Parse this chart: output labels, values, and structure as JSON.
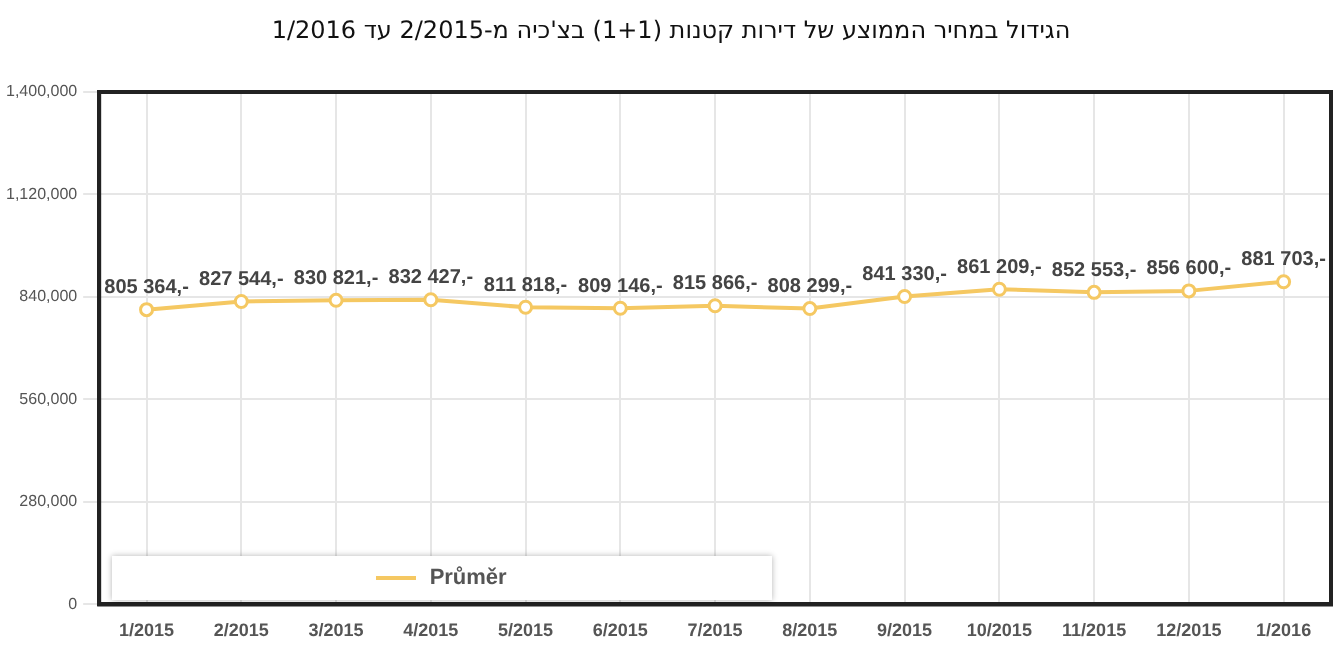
{
  "chart_data": {
    "type": "line",
    "title": "הגידול במחיר הממוצע של דירות קטנות (1+1) בצ'כיה מ-2/2015 עד 1/2016",
    "categories": [
      "1/2015",
      "2/2015",
      "3/2015",
      "4/2015",
      "5/2015",
      "6/2015",
      "7/2015",
      "8/2015",
      "9/2015",
      "10/2015",
      "11/2015",
      "12/2015",
      "1/2016"
    ],
    "series": [
      {
        "name": "Průměr",
        "color": "#f5c862",
        "values": [
          805364,
          827544,
          830821,
          832427,
          811818,
          809146,
          815866,
          808299,
          841330,
          861209,
          852553,
          856600,
          881703
        ],
        "value_labels": [
          "805 364,-",
          "827 544,-",
          "830 821,-",
          "832 427,-",
          "811 818,-",
          "809 146,-",
          "815 866,-",
          "808 299,-",
          "841 330,-",
          "861 209,-",
          "852 553,-",
          "856 600,-",
          "881 703,-"
        ]
      }
    ],
    "ylim": [
      0,
      1400000
    ],
    "yticks": [
      {
        "value": 0,
        "label": "0"
      },
      {
        "value": 280000,
        "label": "280,000"
      },
      {
        "value": 560000,
        "label": "560,000"
      },
      {
        "value": 840000,
        "label": "840,000"
      },
      {
        "value": 1120000,
        "label": "1,120,000"
      },
      {
        "value": 1400000,
        "label": "1,400,000"
      }
    ],
    "grid": true,
    "legend": "bottom left",
    "marker": "circle",
    "line_style": "solid"
  }
}
